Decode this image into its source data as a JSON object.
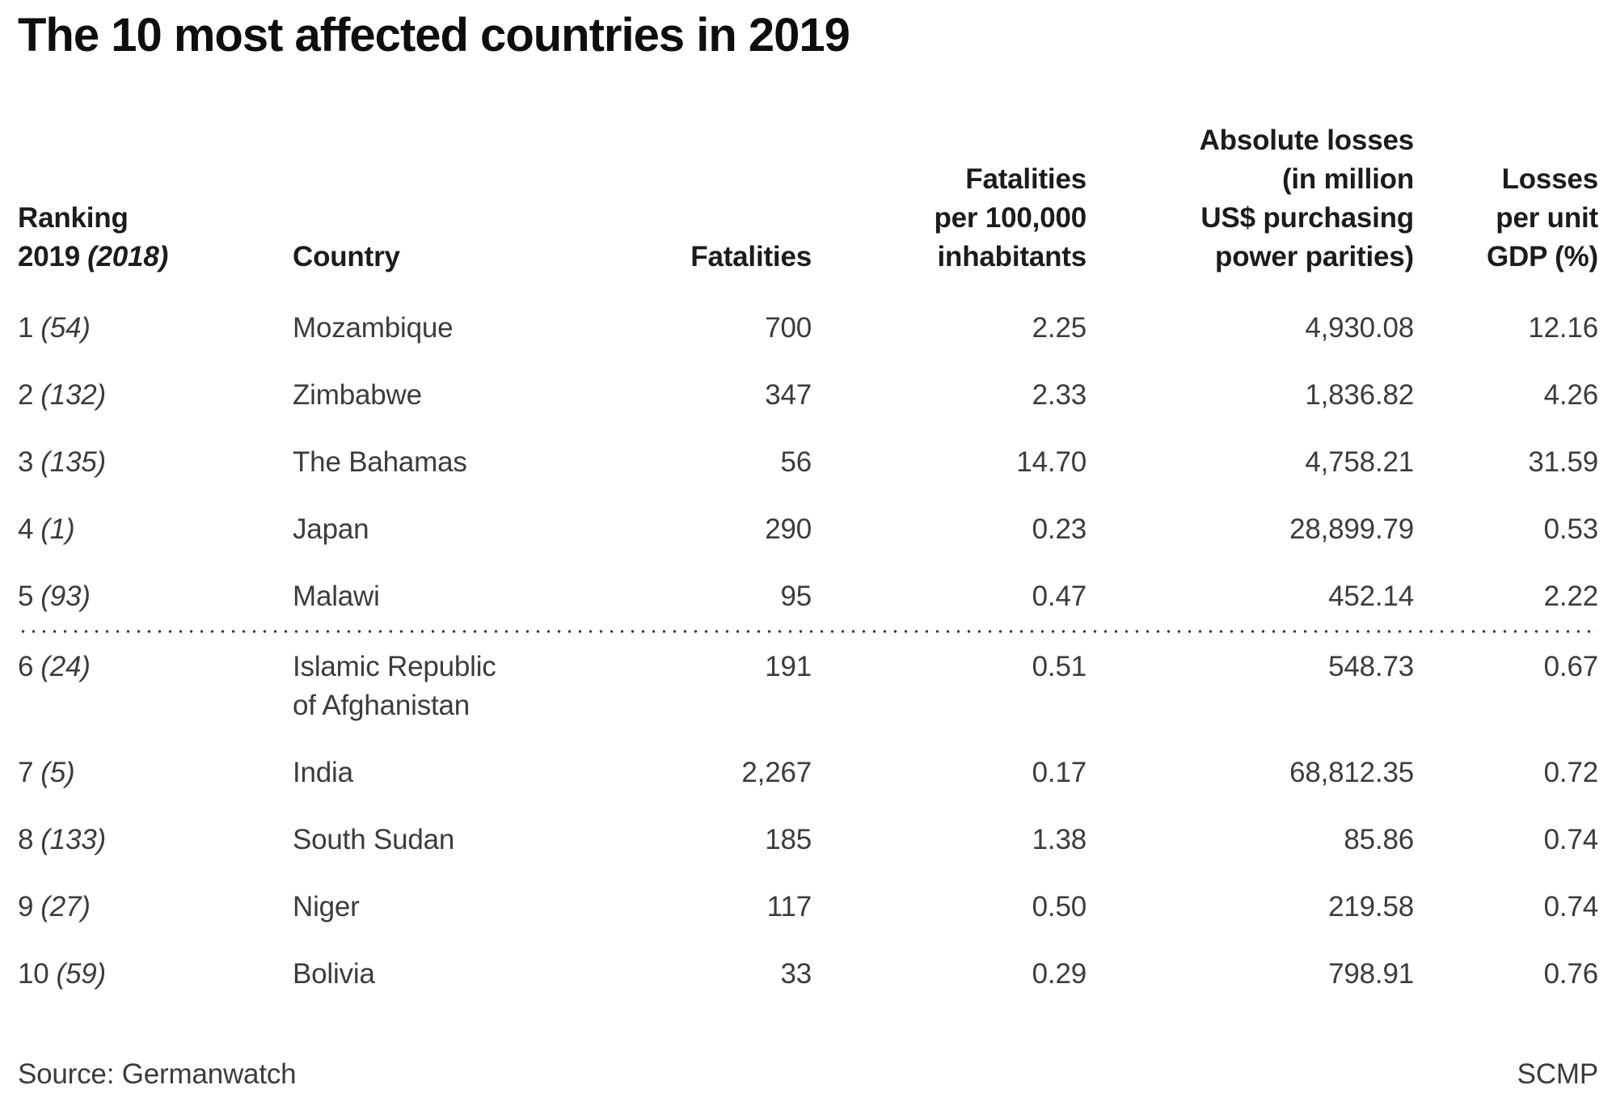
{
  "title": "The 10 most affected countries in 2019",
  "colors": {
    "background": "#ffffff",
    "title_text": "#0e0e0e",
    "header_text": "#1c1c1c",
    "body_text": "#3c3c3c",
    "divider_dots": "#3a3a3a"
  },
  "table": {
    "headers": {
      "ranking_label": "Ranking",
      "ranking_year": "2019",
      "ranking_prev_year": "(2018)",
      "country": "Country",
      "fatalities": "Fatalities",
      "fatalities_per_100k": [
        "Fatalities",
        "per 100,000",
        "inhabitants"
      ],
      "absolute_losses": [
        "Absolute losses",
        "(in million",
        "US$ purchasing",
        "power parities)"
      ],
      "losses_per_gdp": [
        "Losses",
        "per unit",
        "GDP (%)"
      ]
    },
    "divider_after_row": 5,
    "rows": [
      {
        "rank": "1",
        "prev_rank": "(54)",
        "country": "Mozambique",
        "fatalities": "700",
        "fatalities_per_100k": "2.25",
        "absolute_losses": "4,930.08",
        "losses_per_gdp": "12.16"
      },
      {
        "rank": "2",
        "prev_rank": "(132)",
        "country": "Zimbabwe",
        "fatalities": "347",
        "fatalities_per_100k": "2.33",
        "absolute_losses": "1,836.82",
        "losses_per_gdp": "4.26"
      },
      {
        "rank": "3",
        "prev_rank": "(135)",
        "country": "The Bahamas",
        "fatalities": "56",
        "fatalities_per_100k": "14.70",
        "absolute_losses": "4,758.21",
        "losses_per_gdp": "31.59"
      },
      {
        "rank": "4",
        "prev_rank": "(1)",
        "country": "Japan",
        "fatalities": "290",
        "fatalities_per_100k": "0.23",
        "absolute_losses": "28,899.79",
        "losses_per_gdp": "0.53"
      },
      {
        "rank": "5",
        "prev_rank": "(93)",
        "country": "Malawi",
        "fatalities": "95",
        "fatalities_per_100k": "0.47",
        "absolute_losses": "452.14",
        "losses_per_gdp": "2.22"
      },
      {
        "rank": "6",
        "prev_rank": "(24)",
        "country": "Islamic Republic of Afghanistan",
        "fatalities": "191",
        "fatalities_per_100k": "0.51",
        "absolute_losses": "548.73",
        "losses_per_gdp": "0.67"
      },
      {
        "rank": "7",
        "prev_rank": "(5)",
        "country": "India",
        "fatalities": "2,267",
        "fatalities_per_100k": "0.17",
        "absolute_losses": "68,812.35",
        "losses_per_gdp": "0.72"
      },
      {
        "rank": "8",
        "prev_rank": "(133)",
        "country": "South Sudan",
        "fatalities": "185",
        "fatalities_per_100k": "1.38",
        "absolute_losses": "85.86",
        "losses_per_gdp": "0.74"
      },
      {
        "rank": "9",
        "prev_rank": "(27)",
        "country": "Niger",
        "fatalities": "117",
        "fatalities_per_100k": "0.50",
        "absolute_losses": "219.58",
        "losses_per_gdp": "0.74"
      },
      {
        "rank": "10",
        "prev_rank": "(59)",
        "country": "Bolivia",
        "fatalities": "33",
        "fatalities_per_100k": "0.29",
        "absolute_losses": "798.91",
        "losses_per_gdp": "0.76"
      }
    ]
  },
  "footer": {
    "source": "Source: Germanwatch",
    "credit": "SCMP"
  },
  "chart_data": {
    "type": "table",
    "title": "The 10 most affected countries in 2019",
    "columns": [
      "Ranking 2019 (2018)",
      "Country",
      "Fatalities",
      "Fatalities per 100,000 inhabitants",
      "Absolute losses (in million US$ purchasing power parities)",
      "Losses per unit GDP (%)"
    ],
    "rows": [
      [
        "1 (54)",
        "Mozambique",
        700,
        2.25,
        4930.08,
        12.16
      ],
      [
        "2 (132)",
        "Zimbabwe",
        347,
        2.33,
        1836.82,
        4.26
      ],
      [
        "3 (135)",
        "The Bahamas",
        56,
        14.7,
        4758.21,
        31.59
      ],
      [
        "4 (1)",
        "Japan",
        290,
        0.23,
        28899.79,
        0.53
      ],
      [
        "5 (93)",
        "Malawi",
        95,
        0.47,
        452.14,
        2.22
      ],
      [
        "6 (24)",
        "Islamic Republic of Afghanistan",
        191,
        0.51,
        548.73,
        0.67
      ],
      [
        "7 (5)",
        "India",
        2267,
        0.17,
        68812.35,
        0.72
      ],
      [
        "8 (133)",
        "South Sudan",
        185,
        1.38,
        85.86,
        0.74
      ],
      [
        "9 (27)",
        "Niger",
        117,
        0.5,
        219.58,
        0.74
      ],
      [
        "10 (59)",
        "Bolivia",
        33,
        0.29,
        798.91,
        0.76
      ]
    ],
    "divider_after_row": 5,
    "source": "Germanwatch",
    "credit": "SCMP"
  }
}
